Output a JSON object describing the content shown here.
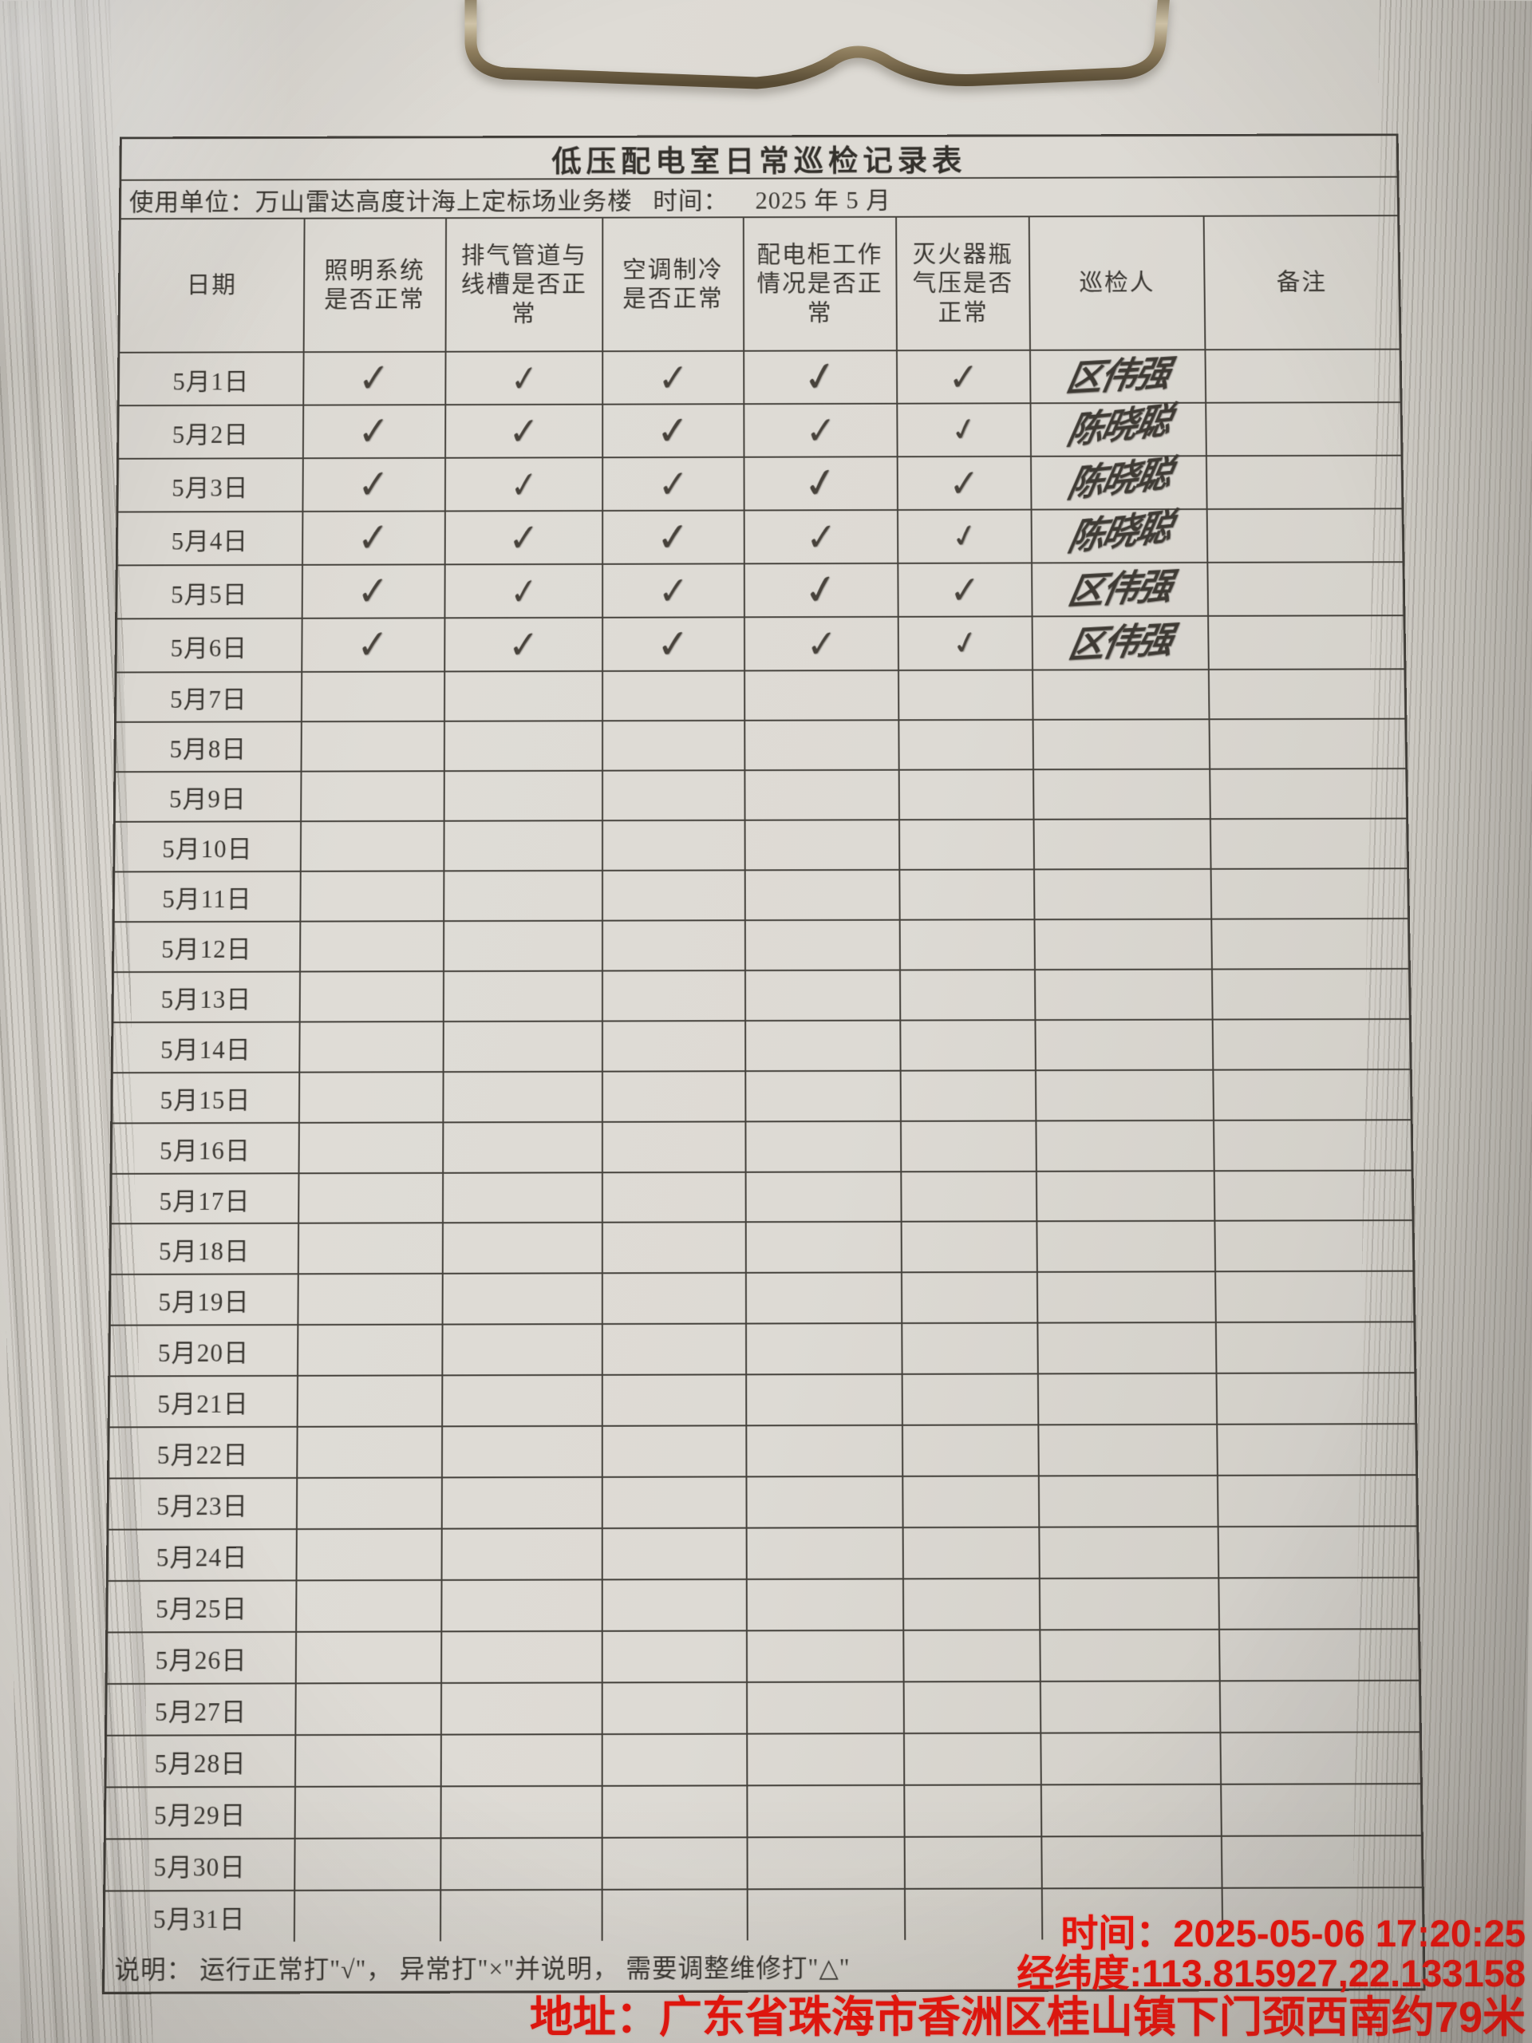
{
  "form": {
    "title": "低压配电室日常巡检记录表",
    "unit_label": "使用单位：",
    "unit_value": "万山雷达高度计海上定标场业务楼",
    "time_label": "时间：",
    "time_value": "2025 年 5 月",
    "columns": [
      "日期",
      "照明系统是否正常",
      "排气管道与线槽是否正常",
      "空调制冷是否正常",
      "配电柜工作情况是否正常",
      "灭火器瓶气压是否正常",
      "巡检人",
      "备注"
    ],
    "check_mark": "✓",
    "rows": [
      {
        "date": "5月1日",
        "checks": [
          1,
          1,
          1,
          1,
          1
        ],
        "inspector": "区伟强",
        "remark": ""
      },
      {
        "date": "5月2日",
        "checks": [
          1,
          1,
          1,
          1,
          1
        ],
        "inspector": "陈晓聪",
        "remark": ""
      },
      {
        "date": "5月3日",
        "checks": [
          1,
          1,
          1,
          1,
          1
        ],
        "inspector": "陈晓聪",
        "remark": ""
      },
      {
        "date": "5月4日",
        "checks": [
          1,
          1,
          1,
          1,
          1
        ],
        "inspector": "陈晓聪",
        "remark": ""
      },
      {
        "date": "5月5日",
        "checks": [
          1,
          1,
          1,
          1,
          1
        ],
        "inspector": "区伟强",
        "remark": ""
      },
      {
        "date": "5月6日",
        "checks": [
          1,
          1,
          1,
          1,
          1
        ],
        "inspector": "区伟强",
        "remark": ""
      },
      {
        "date": "5月7日",
        "checks": [
          0,
          0,
          0,
          0,
          0
        ],
        "inspector": "",
        "remark": ""
      },
      {
        "date": "5月8日",
        "checks": [
          0,
          0,
          0,
          0,
          0
        ],
        "inspector": "",
        "remark": ""
      },
      {
        "date": "5月9日",
        "checks": [
          0,
          0,
          0,
          0,
          0
        ],
        "inspector": "",
        "remark": ""
      },
      {
        "date": "5月10日",
        "checks": [
          0,
          0,
          0,
          0,
          0
        ],
        "inspector": "",
        "remark": ""
      },
      {
        "date": "5月11日",
        "checks": [
          0,
          0,
          0,
          0,
          0
        ],
        "inspector": "",
        "remark": ""
      },
      {
        "date": "5月12日",
        "checks": [
          0,
          0,
          0,
          0,
          0
        ],
        "inspector": "",
        "remark": ""
      },
      {
        "date": "5月13日",
        "checks": [
          0,
          0,
          0,
          0,
          0
        ],
        "inspector": "",
        "remark": ""
      },
      {
        "date": "5月14日",
        "checks": [
          0,
          0,
          0,
          0,
          0
        ],
        "inspector": "",
        "remark": ""
      },
      {
        "date": "5月15日",
        "checks": [
          0,
          0,
          0,
          0,
          0
        ],
        "inspector": "",
        "remark": ""
      },
      {
        "date": "5月16日",
        "checks": [
          0,
          0,
          0,
          0,
          0
        ],
        "inspector": "",
        "remark": ""
      },
      {
        "date": "5月17日",
        "checks": [
          0,
          0,
          0,
          0,
          0
        ],
        "inspector": "",
        "remark": ""
      },
      {
        "date": "5月18日",
        "checks": [
          0,
          0,
          0,
          0,
          0
        ],
        "inspector": "",
        "remark": ""
      },
      {
        "date": "5月19日",
        "checks": [
          0,
          0,
          0,
          0,
          0
        ],
        "inspector": "",
        "remark": ""
      },
      {
        "date": "5月20日",
        "checks": [
          0,
          0,
          0,
          0,
          0
        ],
        "inspector": "",
        "remark": ""
      },
      {
        "date": "5月21日",
        "checks": [
          0,
          0,
          0,
          0,
          0
        ],
        "inspector": "",
        "remark": ""
      },
      {
        "date": "5月22日",
        "checks": [
          0,
          0,
          0,
          0,
          0
        ],
        "inspector": "",
        "remark": ""
      },
      {
        "date": "5月23日",
        "checks": [
          0,
          0,
          0,
          0,
          0
        ],
        "inspector": "",
        "remark": ""
      },
      {
        "date": "5月24日",
        "checks": [
          0,
          0,
          0,
          0,
          0
        ],
        "inspector": "",
        "remark": ""
      },
      {
        "date": "5月25日",
        "checks": [
          0,
          0,
          0,
          0,
          0
        ],
        "inspector": "",
        "remark": ""
      },
      {
        "date": "5月26日",
        "checks": [
          0,
          0,
          0,
          0,
          0
        ],
        "inspector": "",
        "remark": ""
      },
      {
        "date": "5月27日",
        "checks": [
          0,
          0,
          0,
          0,
          0
        ],
        "inspector": "",
        "remark": ""
      },
      {
        "date": "5月28日",
        "checks": [
          0,
          0,
          0,
          0,
          0
        ],
        "inspector": "",
        "remark": ""
      },
      {
        "date": "5月29日",
        "checks": [
          0,
          0,
          0,
          0,
          0
        ],
        "inspector": "",
        "remark": ""
      },
      {
        "date": "5月30日",
        "checks": [
          0,
          0,
          0,
          0,
          0
        ],
        "inspector": "",
        "remark": ""
      },
      {
        "date": "5月31日",
        "checks": [
          0,
          0,
          0,
          0,
          0
        ],
        "inspector": "",
        "remark": ""
      }
    ],
    "note": "说明： 运行正常打\"√\"， 异常打\"×\"并说明， 需要调整维修打\"△\""
  },
  "watermark": {
    "time": "时间：2025-05-06 17:20:25",
    "coordinates": "经纬度:113.815927,22.133158",
    "address": "地址：广东省珠海市香洲区桂山镇下门颈西南约79米",
    "color": "#f4120a"
  }
}
